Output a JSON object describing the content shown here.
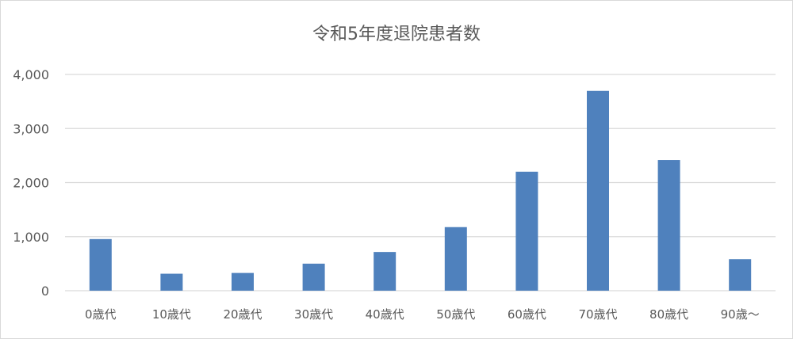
{
  "chart_data": {
    "type": "bar",
    "title": "令和5年度退院患者数",
    "xlabel": "",
    "ylabel": "",
    "categories": [
      "0歳代",
      "10歳代",
      "20歳代",
      "30歳代",
      "40歳代",
      "50歳代",
      "60歳代",
      "70歳代",
      "80歳代",
      "90歳～"
    ],
    "values": [
      955,
      314,
      328,
      500,
      716,
      1176,
      2201,
      3696,
      2417,
      583
    ],
    "ylim": [
      0,
      4000
    ],
    "yticks": [
      0,
      1000,
      2000,
      3000,
      4000
    ],
    "ytick_labels": [
      "0",
      "1,000",
      "2,000",
      "3,000",
      "4,000"
    ],
    "grid": true,
    "legend": "none",
    "bar_color": "#4f81bd"
  }
}
